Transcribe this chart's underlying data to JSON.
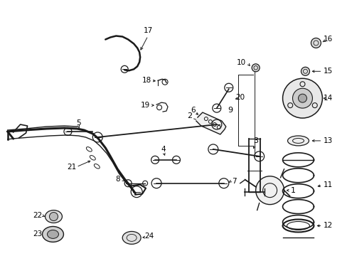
{
  "background_color": "#ffffff",
  "figure_width": 4.89,
  "figure_height": 3.6,
  "dpi": 100,
  "line_color": "#1a1a1a",
  "label_fontsize": 7.5,
  "label_color": "#000000",
  "arrow_color": "#1a1a1a"
}
